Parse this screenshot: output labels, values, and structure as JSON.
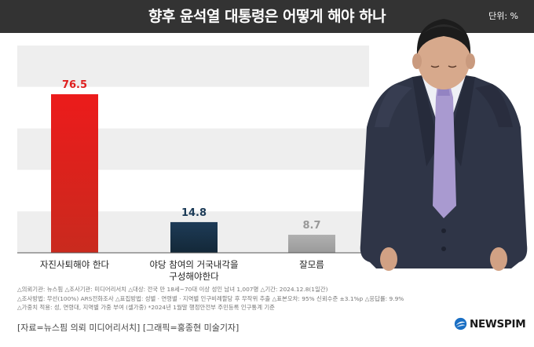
{
  "header": {
    "title": "향후 윤석열 대통령은 어떻게 해야 하나",
    "unit": "단위: %"
  },
  "chart_data": {
    "type": "bar",
    "title": "향후 윤석열 대통령은 어떻게 해야 하나",
    "unit": "단위: %",
    "categories": [
      {
        "line1": "자진사퇴해야 한다",
        "line2": ""
      },
      {
        "line1": "야당 참여의 거국내각을",
        "line2": "구성해야한다"
      },
      {
        "line1": "잘모름",
        "line2": ""
      }
    ],
    "values": [
      76.5,
      14.8,
      8.7
    ],
    "value_labels": [
      "76.5",
      "14.8",
      "8.7"
    ],
    "ylim": [
      0,
      100
    ],
    "grid": "horizontal alternating bands",
    "colors": [
      "#e02020",
      "#1b3a56",
      "#a6a6a6"
    ],
    "label_colors": [
      "#e02020",
      "#1b3a56",
      "#999999"
    ]
  },
  "notes": [
    "△의뢰기관: 뉴스핌  △조사기관: 미디어리서치  △대상: 전국 만 18세~70대 이상 성인 남녀 1,007명  △기간: 2024.12.8(1일간)",
    "△조사방법: 무선(100%) ARS전화조사  △표집방법: 성별 · 연령별 · 지역별 인구비례할당 후 무작위 추출  △표본오차: 95% 신뢰수준 ±3.1%p  △응답률: 9.9%",
    "△가중치 적용: 성, 연령대, 지역별 가중 부여 (셀가중) *2024년 1월말 행정안전부 주민등록 인구통계 기준"
  ],
  "footer": {
    "source": "[자료=뉴스핌 의뢰 미디어리서치] [그래픽=홍종현 미술기자]",
    "logo": "NEWSPIM"
  }
}
